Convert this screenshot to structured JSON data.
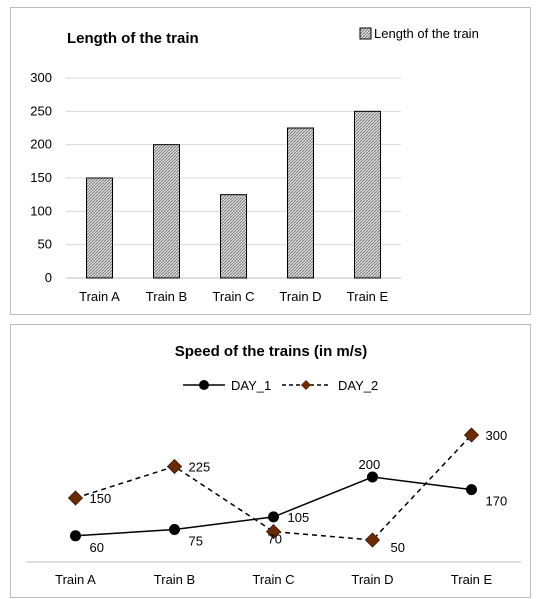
{
  "chart_data": [
    {
      "type": "bar",
      "title": "Length of the train",
      "categories": [
        "Train A",
        "Train B",
        "Train C",
        "Train D",
        "Train E"
      ],
      "series": [
        {
          "name": "Length of the train",
          "values": [
            150,
            200,
            125,
            225,
            250
          ]
        }
      ],
      "ylim": [
        0,
        300
      ],
      "yticks": [
        "0",
        "50",
        "100",
        "150",
        "200",
        "250",
        "300"
      ],
      "grid": true,
      "legend": "top-right",
      "colors": {
        "bar_fill": "#c8c8c8",
        "bar_stroke": "#000000",
        "grid": "#d9d9d9"
      }
    },
    {
      "type": "line",
      "title": "Speed of the trains (in m/s)",
      "categories": [
        "Train A",
        "Train B",
        "Train C",
        "Train D",
        "Train E"
      ],
      "series": [
        {
          "name": "DAY_1",
          "values": [
            60,
            75,
            105,
            200,
            170
          ],
          "labels": [
            "60",
            "75",
            "105",
            "200",
            "170"
          ],
          "marker": "circle",
          "line": "solid"
        },
        {
          "name": "DAY_2",
          "values": [
            150,
            225,
            70,
            50,
            300
          ],
          "labels": [
            "150",
            "225",
            "70",
            "50",
            "300"
          ],
          "marker": "diamond",
          "line": "dashed"
        }
      ],
      "legend": "top-center",
      "grid": false,
      "colors": {
        "day1": "#000000",
        "day2_line": "#000000",
        "day2_marker": "#6b2a00"
      }
    }
  ]
}
